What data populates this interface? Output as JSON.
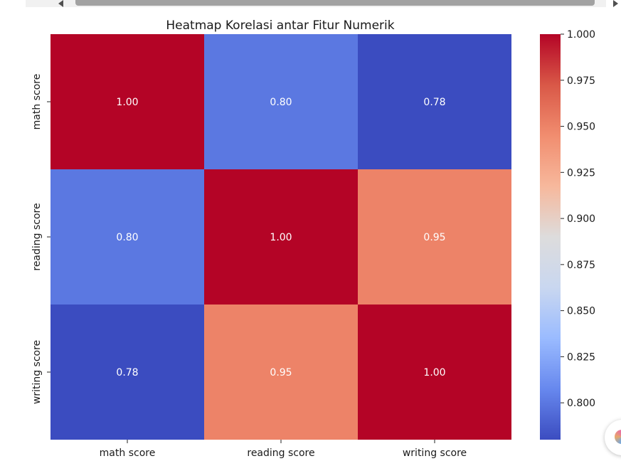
{
  "chart_data": {
    "type": "heatmap",
    "title": "Heatmap Korelasi antar Fitur Numerik",
    "x_labels": [
      "math score",
      "reading score",
      "writing score"
    ],
    "y_labels": [
      "math score",
      "reading score",
      "writing score"
    ],
    "values": [
      [
        1.0,
        0.8,
        0.78
      ],
      [
        0.8,
        1.0,
        0.95
      ],
      [
        0.78,
        0.95,
        1.0
      ]
    ],
    "cell_labels": [
      [
        "1.00",
        "0.80",
        "0.78"
      ],
      [
        "0.80",
        "1.00",
        "0.95"
      ],
      [
        "0.78",
        "0.95",
        "1.00"
      ]
    ],
    "colormap": "coolwarm",
    "colorbar": {
      "range": [
        0.78,
        1.0
      ],
      "ticks": [
        0.8,
        0.825,
        0.85,
        0.875,
        0.9,
        0.925,
        0.95,
        0.975,
        1.0
      ],
      "tick_labels": [
        "0.800",
        "0.825",
        "0.850",
        "0.875",
        "0.900",
        "0.925",
        "0.950",
        "0.975",
        "1.000"
      ],
      "gradient_colors": [
        "#3b4cc0",
        "#6788ee",
        "#9abbff",
        "#c9d7f0",
        "#dddcdc",
        "#f7b89c",
        "#f18d6f",
        "#d95847",
        "#b40426"
      ]
    },
    "grid": false
  }
}
